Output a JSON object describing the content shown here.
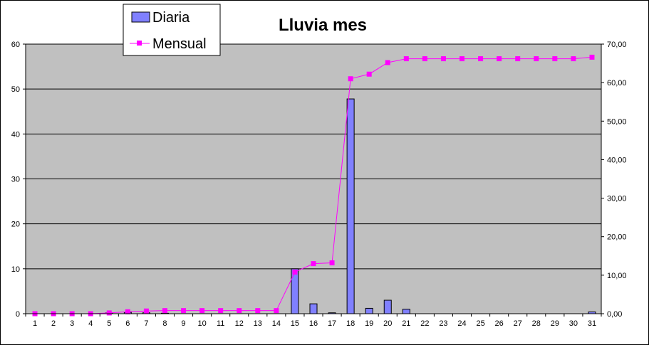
{
  "chart_data": {
    "type": "bar",
    "title": "Lluvia mes",
    "xlabel": "",
    "ylabel": "",
    "categories": [
      "1",
      "2",
      "3",
      "4",
      "5",
      "6",
      "7",
      "8",
      "9",
      "10",
      "11",
      "12",
      "13",
      "14",
      "15",
      "16",
      "17",
      "18",
      "19",
      "20",
      "21",
      "22",
      "23",
      "24",
      "25",
      "26",
      "27",
      "28",
      "29",
      "30",
      "31"
    ],
    "series": [
      {
        "name": "Diaria",
        "type": "bar",
        "axis": "left",
        "color": "#8080ff",
        "values": [
          0,
          0,
          0,
          0,
          0.2,
          0.3,
          0.2,
          0.1,
          0,
          0,
          0,
          0,
          0,
          0,
          10,
          2.2,
          0.2,
          47.8,
          1.2,
          3.0,
          1.0,
          0,
          0,
          0,
          0,
          0,
          0,
          0,
          0,
          0,
          0.4
        ]
      },
      {
        "name": "Mensual",
        "type": "line",
        "axis": "right",
        "color": "#ff00ff",
        "values": [
          0,
          0,
          0,
          0,
          0.2,
          0.5,
          0.7,
          0.8,
          0.8,
          0.8,
          0.8,
          0.8,
          0.8,
          0.8,
          10.8,
          13.0,
          13.2,
          61.0,
          62.2,
          65.2,
          66.2,
          66.2,
          66.2,
          66.2,
          66.2,
          66.2,
          66.2,
          66.2,
          66.2,
          66.2,
          66.6
        ]
      }
    ],
    "ylim": [
      0,
      60
    ],
    "yticks": [
      "0",
      "10",
      "20",
      "30",
      "40",
      "50",
      "60"
    ],
    "y2lim": [
      0,
      70
    ],
    "y2ticks": [
      "0,00",
      "10,00",
      "20,00",
      "30,00",
      "40,00",
      "50,00",
      "60,00",
      "70,00"
    ],
    "grid": true,
    "plot_background": "#c0c0c0",
    "legend_position": "top-left"
  }
}
